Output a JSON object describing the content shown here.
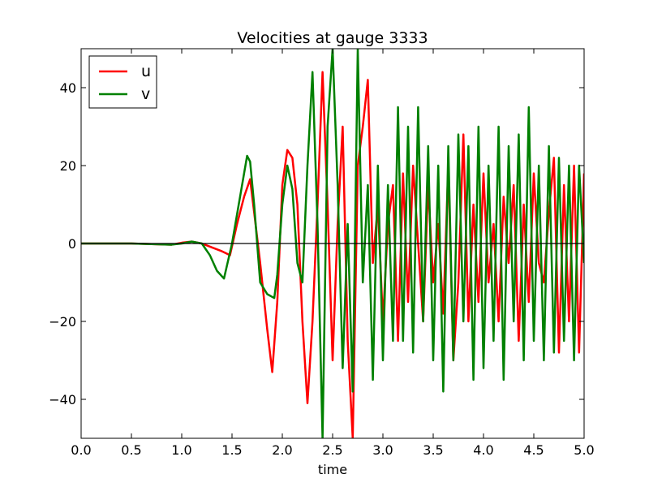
{
  "chart_data": {
    "type": "line",
    "title": "Velocities at gauge 3333",
    "xlabel": "time",
    "ylabel": "",
    "xlim": [
      0,
      5
    ],
    "ylim": [
      -50,
      50
    ],
    "x_ticks": [
      0,
      0.5,
      1,
      1.5,
      2,
      2.5,
      3,
      3.5,
      4,
      4.5,
      5
    ],
    "x_tick_labels": [
      "0.0",
      "0.5",
      "1.0",
      "1.5",
      "2.0",
      "2.5",
      "3.0",
      "3.5",
      "4.0",
      "4.5",
      "5.0"
    ],
    "y_ticks": [
      -40,
      -20,
      0,
      20,
      40
    ],
    "y_tick_labels": [
      "−40",
      "−20",
      "0",
      "20",
      "40"
    ],
    "zero_line": 0,
    "grid": false,
    "legend_position": "top-left",
    "series": [
      {
        "name": "u",
        "color": "#ff0000",
        "x": [
          0,
          0.5,
          0.9,
          1.0,
          1.1,
          1.2,
          1.3,
          1.4,
          1.48,
          1.55,
          1.62,
          1.68,
          1.72,
          1.78,
          1.85,
          1.9,
          1.95,
          2.0,
          2.05,
          2.1,
          2.15,
          2.2,
          2.25,
          2.3,
          2.35,
          2.4,
          2.45,
          2.5,
          2.55,
          2.6,
          2.65,
          2.7,
          2.75,
          2.8,
          2.85,
          2.9,
          2.95,
          3.0,
          3.05,
          3.1,
          3.15,
          3.2,
          3.25,
          3.3,
          3.35,
          3.4,
          3.45,
          3.5,
          3.55,
          3.6,
          3.65,
          3.7,
          3.75,
          3.8,
          3.85,
          3.9,
          3.95,
          4.0,
          4.05,
          4.1,
          4.15,
          4.2,
          4.25,
          4.3,
          4.35,
          4.4,
          4.45,
          4.5,
          4.55,
          4.6,
          4.65,
          4.7,
          4.75,
          4.8,
          4.85,
          4.9,
          4.95,
          5.0
        ],
        "y": [
          0,
          0,
          -0.3,
          0.2,
          0.5,
          0,
          -1,
          -2,
          -3,
          5,
          12,
          16.5,
          8,
          -5,
          -22,
          -33,
          -15,
          15,
          24,
          22,
          10,
          -20,
          -41,
          -20,
          10,
          44,
          10,
          -30,
          5,
          30,
          -25,
          -50,
          20,
          30,
          42,
          -5,
          10,
          -20,
          5,
          15,
          -25,
          18,
          -15,
          20,
          0,
          -20,
          15,
          -10,
          5,
          -18,
          20,
          -30,
          -10,
          28,
          -20,
          10,
          -15,
          18,
          -10,
          5,
          -20,
          12,
          -5,
          15,
          -25,
          10,
          -15,
          18,
          -5,
          -10,
          8,
          22,
          -28,
          15,
          -20,
          20,
          -28,
          18
        ]
      },
      {
        "name": "v",
        "color": "#008000",
        "x": [
          0,
          0.5,
          0.9,
          1.0,
          1.1,
          1.2,
          1.28,
          1.35,
          1.42,
          1.5,
          1.58,
          1.65,
          1.68,
          1.72,
          1.78,
          1.85,
          1.92,
          1.95,
          2.0,
          2.05,
          2.1,
          2.15,
          2.2,
          2.25,
          2.3,
          2.35,
          2.4,
          2.45,
          2.5,
          2.55,
          2.6,
          2.65,
          2.7,
          2.75,
          2.8,
          2.85,
          2.9,
          2.95,
          3.0,
          3.05,
          3.1,
          3.15,
          3.2,
          3.25,
          3.3,
          3.35,
          3.4,
          3.45,
          3.5,
          3.55,
          3.6,
          3.65,
          3.7,
          3.75,
          3.8,
          3.85,
          3.9,
          3.95,
          4.0,
          4.05,
          4.1,
          4.15,
          4.2,
          4.25,
          4.3,
          4.35,
          4.4,
          4.45,
          4.5,
          4.55,
          4.6,
          4.65,
          4.7,
          4.75,
          4.8,
          4.85,
          4.9,
          4.95,
          5.0
        ],
        "y": [
          0,
          0,
          -0.3,
          0,
          0.5,
          0,
          -3,
          -7,
          -9,
          0,
          12,
          22.5,
          21,
          10,
          -10,
          -13,
          -14,
          -8,
          10,
          20,
          14,
          -5,
          -10,
          20,
          44,
          5,
          -50,
          30,
          50,
          15,
          -32,
          5,
          -38,
          50,
          -10,
          15,
          -35,
          20,
          -30,
          15,
          -25,
          35,
          -25,
          30,
          -28,
          35,
          -20,
          25,
          -30,
          20,
          -38,
          25,
          -30,
          28,
          -20,
          25,
          -35,
          30,
          -32,
          20,
          -25,
          30,
          -35,
          25,
          -20,
          28,
          -30,
          35,
          -25,
          20,
          -30,
          25,
          -28,
          22,
          -25,
          20,
          -30,
          20,
          -5
        ]
      }
    ]
  }
}
